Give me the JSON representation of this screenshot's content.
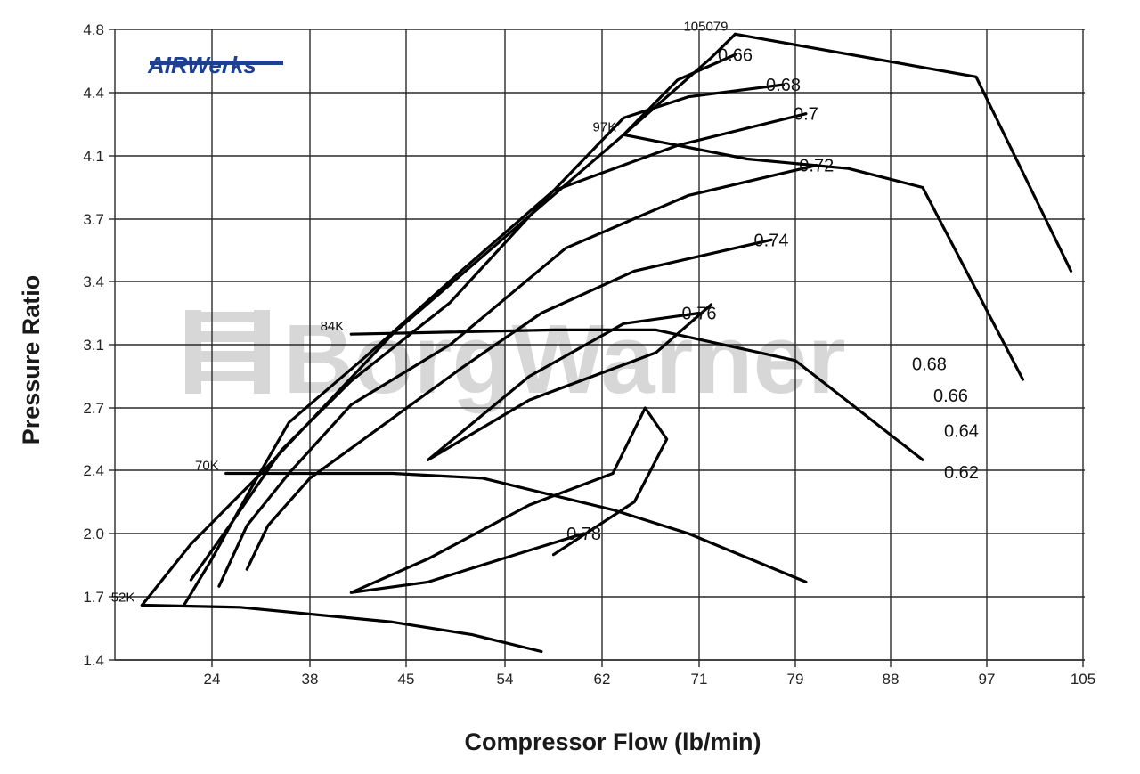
{
  "chart_data": {
    "type": "line",
    "xlabel": "Compressor Flow (lb/min)",
    "ylabel": "Pressure Ratio",
    "x_ticks": [
      "24",
      "38",
      "45",
      "54",
      "62",
      "71",
      "79",
      "88",
      "97",
      "105"
    ],
    "y_ticks": [
      "1.4",
      "1.7",
      "2.0",
      "2.4",
      "2.7",
      "3.1",
      "3.4",
      "3.7",
      "4.1",
      "4.4",
      "4.8"
    ],
    "grid": true,
    "speed_lines": [
      {
        "label": "52K",
        "points": [
          [
            14,
            1.66
          ],
          [
            28,
            1.65
          ],
          [
            44,
            1.58
          ],
          [
            51,
            1.52
          ],
          [
            57,
            1.44
          ]
        ]
      },
      {
        "label": "70K",
        "points": [
          [
            26,
            2.38
          ],
          [
            44,
            2.38
          ],
          [
            52,
            2.35
          ],
          [
            63,
            2.15
          ],
          [
            70,
            2.0
          ],
          [
            80,
            1.77
          ]
        ]
      },
      {
        "label": "84K",
        "points": [
          [
            41,
            3.15
          ],
          [
            58,
            3.17
          ],
          [
            67,
            3.17
          ],
          [
            79,
            3.0
          ],
          [
            91,
            2.45
          ]
        ]
      },
      {
        "label": "97K",
        "points": [
          [
            64,
            4.2
          ],
          [
            75,
            4.08
          ],
          [
            84,
            4.02
          ],
          [
            91,
            3.9
          ],
          [
            100,
            2.88
          ]
        ]
      },
      {
        "label": "105079",
        "points": [
          [
            74,
            4.77
          ],
          [
            96,
            4.5
          ],
          [
            104,
            3.45
          ]
        ]
      }
    ],
    "surge_line": [
      [
        14,
        1.66
      ],
      [
        21,
        1.95
      ],
      [
        31,
        2.38
      ],
      [
        44,
        3.15
      ],
      [
        64,
        4.2
      ],
      [
        72,
        4.62
      ],
      [
        74,
        4.77
      ]
    ],
    "efficiency_islands": [
      {
        "label": "0.78",
        "points": [
          [
            60.5,
            2.0
          ],
          [
            56,
            1.92
          ],
          [
            47,
            1.77
          ],
          [
            41,
            1.72
          ],
          [
            47,
            1.88
          ],
          [
            56,
            2.18
          ],
          [
            63,
            2.38
          ],
          [
            66,
            2.7
          ],
          [
            68,
            2.55
          ],
          [
            65,
            2.2
          ],
          [
            58,
            1.9
          ]
        ]
      },
      {
        "label": "0.76",
        "points": [
          [
            71,
            3.25
          ],
          [
            64,
            3.2
          ],
          [
            56,
            2.9
          ],
          [
            47,
            2.45
          ],
          [
            56,
            2.75
          ],
          [
            67,
            3.05
          ],
          [
            72,
            3.29
          ]
        ]
      },
      {
        "label": "0.74",
        "points": [
          [
            77,
            3.6
          ],
          [
            65,
            3.45
          ],
          [
            57,
            3.25
          ],
          [
            50,
            2.95
          ],
          [
            44,
            2.65
          ],
          [
            38,
            2.35
          ],
          [
            32,
            2.05
          ],
          [
            29,
            1.83
          ]
        ]
      },
      {
        "label": "0.72",
        "points": [
          [
            81,
            4.04
          ],
          [
            70,
            3.85
          ],
          [
            59,
            3.56
          ],
          [
            49,
            3.1
          ],
          [
            41,
            2.72
          ],
          [
            35,
            2.38
          ],
          [
            29,
            2.05
          ],
          [
            25,
            1.75
          ]
        ]
      },
      {
        "label": "0.7",
        "points": [
          [
            80,
            4.3
          ],
          [
            69,
            4.15
          ],
          [
            58,
            3.88
          ],
          [
            50,
            3.45
          ],
          [
            42,
            3.02
          ],
          [
            35,
            2.63
          ],
          [
            29,
            2.24
          ],
          [
            24,
            1.88
          ],
          [
            20,
            1.66
          ]
        ]
      },
      {
        "label": "0.68",
        "points": [
          [
            78,
            4.45
          ],
          [
            70,
            4.38
          ],
          [
            64,
            4.28
          ],
          [
            57,
            3.8
          ],
          [
            49,
            3.3
          ],
          [
            41,
            2.87
          ],
          [
            34,
            2.5
          ],
          [
            27,
            2.08
          ],
          [
            21,
            1.78
          ]
        ]
      },
      {
        "label": "0.66",
        "points": [
          [
            74,
            4.64
          ],
          [
            69,
            4.48
          ],
          [
            64,
            4.2
          ]
        ]
      },
      {
        "label": "0.68",
        "points": [
          [
            90,
            2.98
          ]
        ]
      },
      {
        "label": "0.66",
        "points": [
          [
            92,
            2.78
          ]
        ]
      },
      {
        "label": "0.64",
        "points": [
          [
            93,
            2.59
          ]
        ]
      },
      {
        "label": "0.62",
        "points": [
          [
            93,
            2.39
          ]
        ]
      }
    ]
  },
  "branding": {
    "logo": "AIRWerks",
    "watermark": "BorgWarner",
    "colors": {
      "logo": "#1f3f8f",
      "watermark": "#d7d7d7",
      "lines": "#000000",
      "grid": "#2a2a2a"
    }
  }
}
